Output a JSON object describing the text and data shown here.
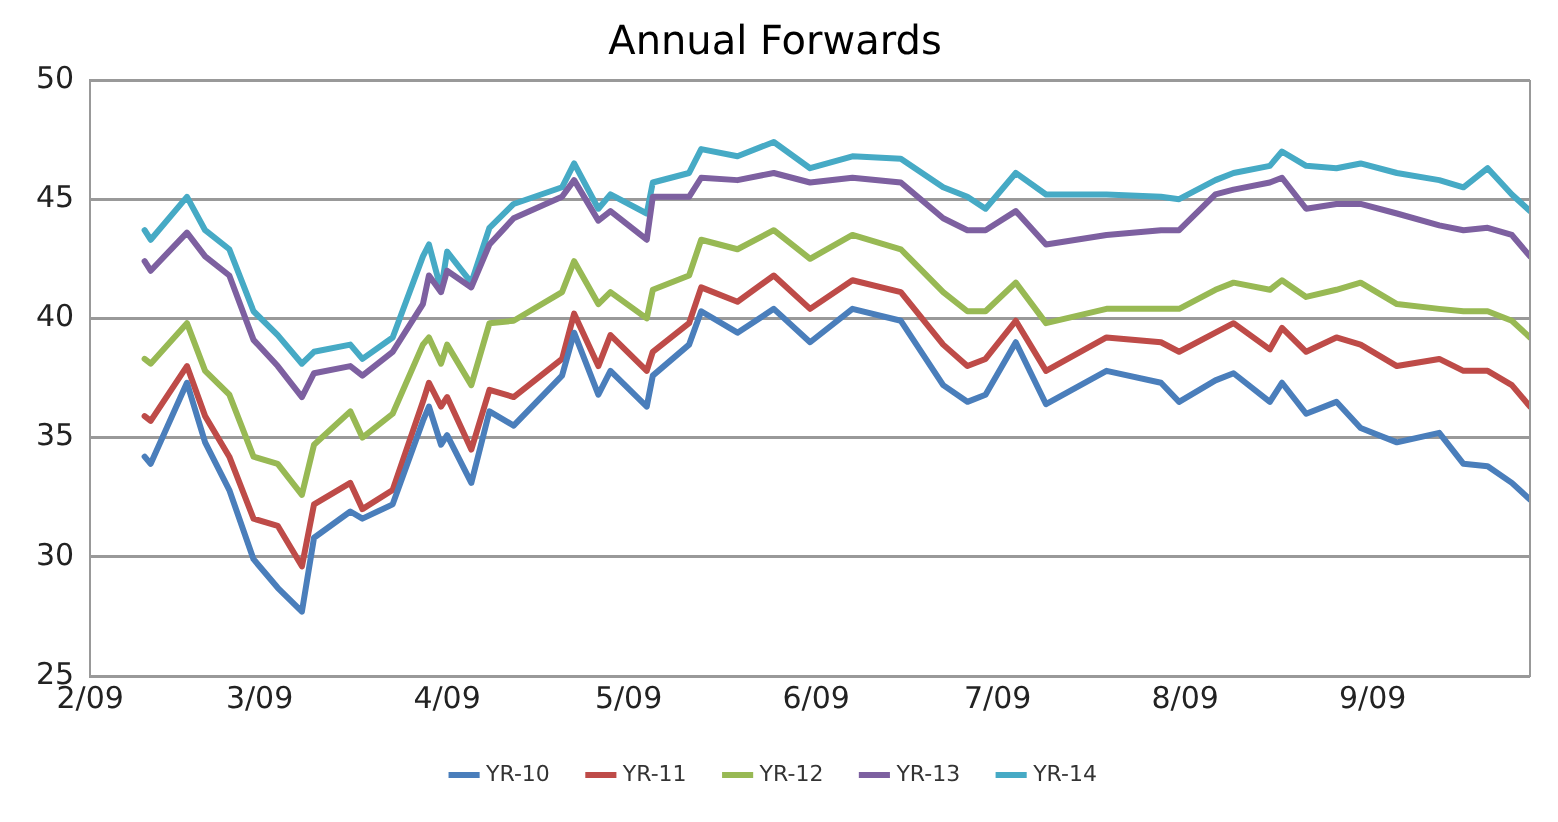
{
  "chart_data": {
    "type": "line",
    "title": "Annual Forwards",
    "x": [
      "2009-02-10",
      "2009-02-11",
      "2009-02-17",
      "2009-02-20",
      "2009-02-24",
      "2009-02-28",
      "2009-03-04",
      "2009-03-08",
      "2009-03-10",
      "2009-03-16",
      "2009-03-18",
      "2009-03-23",
      "2009-03-28",
      "2009-03-29",
      "2009-03-31",
      "2009-04-01",
      "2009-04-05",
      "2009-04-08",
      "2009-04-12",
      "2009-04-20",
      "2009-04-22",
      "2009-04-26",
      "2009-04-28",
      "2009-05-04",
      "2009-05-05",
      "2009-05-11",
      "2009-05-13",
      "2009-05-19",
      "2009-05-25",
      "2009-05-31",
      "2009-06-07",
      "2009-06-15",
      "2009-06-22",
      "2009-06-26",
      "2009-06-29",
      "2009-07-04",
      "2009-07-09",
      "2009-07-19",
      "2009-07-28",
      "2009-07-31",
      "2009-08-06",
      "2009-08-09",
      "2009-08-15",
      "2009-08-17",
      "2009-08-21",
      "2009-08-26",
      "2009-08-30",
      "2009-09-05",
      "2009-09-12",
      "2009-09-16",
      "2009-09-20",
      "2009-09-24",
      "2009-09-27"
    ],
    "series": [
      {
        "name": "YR-10",
        "color": "#4a7ebb",
        "values": [
          34.2,
          33.9,
          37.3,
          34.8,
          32.8,
          29.9,
          28.7,
          27.7,
          30.8,
          31.9,
          31.6,
          32.2,
          35.7,
          36.3,
          34.7,
          35.1,
          33.1,
          36.1,
          35.5,
          37.6,
          39.4,
          36.8,
          37.8,
          36.3,
          37.6,
          38.9,
          40.3,
          39.4,
          40.4,
          39.0,
          40.4,
          39.9,
          37.2,
          36.5,
          36.8,
          39.0,
          36.4,
          37.8,
          37.3,
          36.5,
          37.4,
          37.7,
          36.5,
          37.3,
          36.0,
          36.5,
          35.4,
          34.8,
          35.2,
          33.9,
          33.8,
          33.1,
          32.4
        ]
      },
      {
        "name": "YR-11",
        "color": "#be4b48",
        "values": [
          35.9,
          35.7,
          38.0,
          35.9,
          34.2,
          31.6,
          31.3,
          29.6,
          32.2,
          33.1,
          32.0,
          32.8,
          36.5,
          37.3,
          36.3,
          36.7,
          34.5,
          37.0,
          36.7,
          38.3,
          40.2,
          38.0,
          39.3,
          37.8,
          38.6,
          39.8,
          41.3,
          40.7,
          41.8,
          40.4,
          41.6,
          41.1,
          38.9,
          38.0,
          38.3,
          39.9,
          37.8,
          39.2,
          39.0,
          38.6,
          39.4,
          39.8,
          38.7,
          39.6,
          38.6,
          39.2,
          38.9,
          38.0,
          38.3,
          37.8,
          37.8,
          37.2,
          36.3
        ]
      },
      {
        "name": "YR-12",
        "color": "#98b954",
        "values": [
          38.3,
          38.1,
          39.8,
          37.8,
          36.8,
          34.2,
          33.9,
          32.6,
          34.7,
          36.1,
          35.0,
          36.0,
          38.9,
          39.2,
          38.1,
          38.9,
          37.2,
          39.8,
          39.9,
          41.1,
          42.4,
          40.6,
          41.1,
          40.0,
          41.2,
          41.8,
          43.3,
          42.9,
          43.7,
          42.5,
          43.5,
          42.9,
          41.1,
          40.3,
          40.3,
          41.5,
          39.8,
          40.4,
          40.4,
          40.4,
          41.2,
          41.5,
          41.2,
          41.6,
          40.9,
          41.2,
          41.5,
          40.6,
          40.4,
          40.3,
          40.3,
          39.9,
          39.2
        ]
      },
      {
        "name": "YR-13",
        "color": "#7d60a0",
        "values": [
          42.4,
          42.0,
          43.6,
          42.6,
          41.8,
          39.1,
          38.0,
          36.7,
          37.7,
          38.0,
          37.6,
          38.6,
          40.6,
          41.8,
          41.1,
          42.0,
          41.3,
          43.1,
          44.2,
          45.1,
          45.8,
          44.1,
          44.5,
          43.3,
          45.1,
          45.1,
          45.9,
          45.8,
          46.1,
          45.7,
          45.9,
          45.7,
          44.2,
          43.7,
          43.7,
          44.5,
          43.1,
          43.5,
          43.7,
          43.7,
          45.2,
          45.4,
          45.7,
          45.9,
          44.6,
          44.8,
          44.8,
          44.4,
          43.9,
          43.7,
          43.8,
          43.5,
          42.6
        ]
      },
      {
        "name": "YR-14",
        "color": "#46aac5",
        "values": [
          43.7,
          43.3,
          45.1,
          43.7,
          42.9,
          40.3,
          39.3,
          38.1,
          38.6,
          38.9,
          38.3,
          39.2,
          42.6,
          43.1,
          41.2,
          42.8,
          41.5,
          43.8,
          44.8,
          45.5,
          46.5,
          44.6,
          45.2,
          44.4,
          45.7,
          46.1,
          47.1,
          46.8,
          47.4,
          46.3,
          46.8,
          46.7,
          45.5,
          45.1,
          44.6,
          46.1,
          45.2,
          45.2,
          45.1,
          45.0,
          45.8,
          46.1,
          46.4,
          47.0,
          46.4,
          46.3,
          46.5,
          46.1,
          45.8,
          45.5,
          46.3,
          45.2,
          44.5
        ]
      }
    ],
    "xlim": [
      "2009-02-01",
      "2009-09-27"
    ],
    "xticks": [
      {
        "value": "2009-02-01",
        "label": "2/09"
      },
      {
        "value": "2009-03-01",
        "label": "3/09"
      },
      {
        "value": "2009-04-01",
        "label": "4/09"
      },
      {
        "value": "2009-05-01",
        "label": "5/09"
      },
      {
        "value": "2009-06-01",
        "label": "6/09"
      },
      {
        "value": "2009-07-01",
        "label": "7/09"
      },
      {
        "value": "2009-08-01",
        "label": "8/09"
      },
      {
        "value": "2009-09-01",
        "label": "9/09"
      }
    ],
    "ylim": [
      25,
      50
    ],
    "yticks": [
      25,
      30,
      35,
      40,
      45,
      50
    ],
    "grid": "y",
    "legend": "bottom",
    "marker": "none",
    "line_style": "solid"
  }
}
